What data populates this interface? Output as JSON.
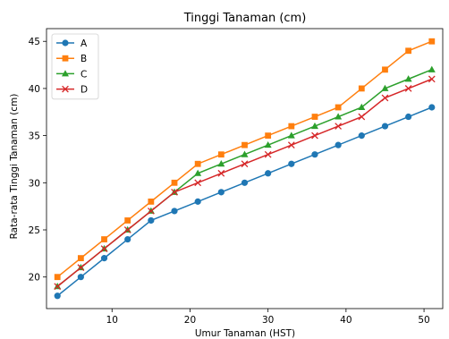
{
  "chart_data": {
    "type": "line",
    "title": "Tinggi Tanaman (cm)",
    "xlabel": "Umur Tanaman (HST)",
    "ylabel": "Rata-rata Tinggi Tanaman (cm)",
    "xlim": [
      1.6,
      52.4
    ],
    "ylim": [
      16.65,
      46.35
    ],
    "xticks": [
      10,
      20,
      30,
      40,
      50
    ],
    "yticks": [
      20,
      25,
      30,
      35,
      40,
      45
    ],
    "grid": false,
    "legend_position": "top-left",
    "x": [
      3,
      6,
      9,
      12,
      15,
      18,
      21,
      24,
      27,
      30,
      33,
      36,
      39,
      42,
      45,
      48,
      51
    ],
    "series": [
      {
        "name": "A",
        "color": "#1f77b4",
        "marker": "circle",
        "values": [
          18,
          20,
          22,
          24,
          26,
          27,
          28,
          29,
          30,
          31,
          32,
          33,
          34,
          35,
          36,
          37,
          38
        ]
      },
      {
        "name": "B",
        "color": "#ff7f0e",
        "marker": "square",
        "values": [
          20,
          22,
          24,
          26,
          28,
          30,
          32,
          33,
          34,
          35,
          36,
          37,
          38,
          40,
          42,
          44,
          45
        ]
      },
      {
        "name": "C",
        "color": "#2ca02c",
        "marker": "triangle",
        "values": [
          19,
          21,
          23,
          25,
          27,
          29,
          31,
          32,
          33,
          34,
          35,
          36,
          37,
          38,
          40,
          41,
          42
        ]
      },
      {
        "name": "D",
        "color": "#d62728",
        "marker": "x",
        "values": [
          19,
          21,
          23,
          25,
          27,
          29,
          30,
          31,
          32,
          33,
          34,
          35,
          36,
          37,
          39,
          40,
          41
        ]
      }
    ]
  }
}
